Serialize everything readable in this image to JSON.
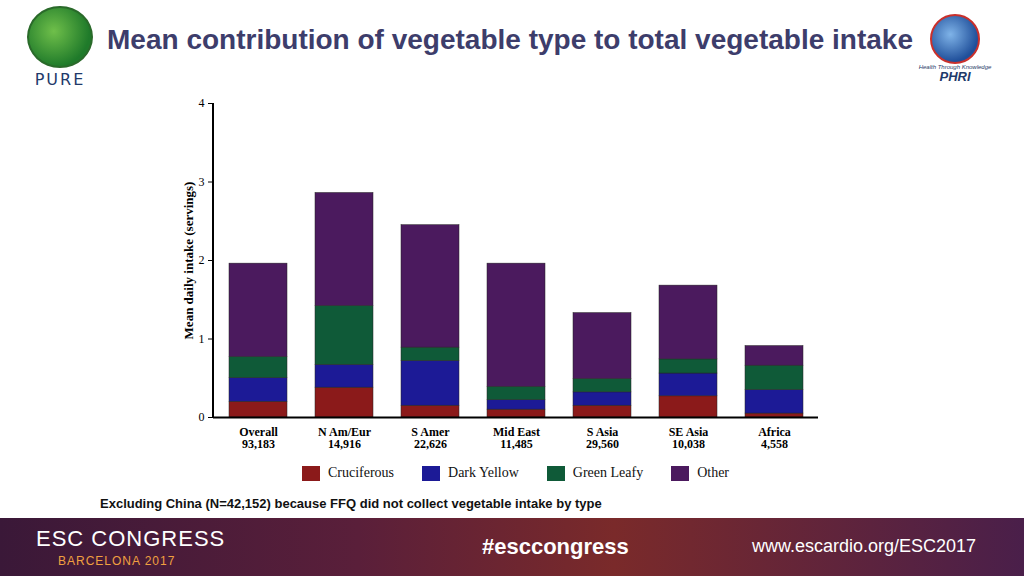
{
  "chart_data": {
    "type": "bar",
    "title": "Mean contribution of vegetable type to total vegetable intake",
    "y_label": "Mean daily intake (servings)",
    "categories": [
      "Overall\n93,183",
      "N Am/Eur\n14,916",
      "S Amer\n22,626",
      "Mid East\n11,485",
      "S Asia\n29,560",
      "SE Asia\n10,038",
      "Africa\n4,558"
    ],
    "series": [
      {
        "name": "Cruciferous",
        "color": "#8b1a1a",
        "values": [
          0.2,
          0.38,
          0.15,
          0.1,
          0.15,
          0.27,
          0.05
        ]
      },
      {
        "name": "Dark Yellow",
        "color": "#1c1a96",
        "values": [
          0.3,
          0.29,
          0.57,
          0.12,
          0.17,
          0.29,
          0.3
        ]
      },
      {
        "name": "Green Leafy",
        "color": "#0f5a38",
        "values": [
          0.27,
          0.75,
          0.17,
          0.17,
          0.17,
          0.18,
          0.31
        ]
      },
      {
        "name": "Other",
        "color": "#4b1a5e",
        "values": [
          1.19,
          1.44,
          1.56,
          1.57,
          0.84,
          0.94,
          0.25
        ]
      }
    ],
    "stacked": true,
    "ylim": [
      0,
      4
    ],
    "yticks": [
      0,
      1,
      2,
      3,
      4
    ],
    "grid": false,
    "legend": "bottom",
    "footnote": "Excluding China (N=42,152) because FFQ did not collect vegetable intake by type"
  },
  "page": {
    "logo_left": "PURE",
    "logo_right": "PHRI",
    "logo_right_tagline": "Health Through Knowledge",
    "footer": [
      "ESC CONGRESS",
      "BARCELONA 2017",
      "#esccongress",
      "www.escardio.org/ESC2017"
    ]
  }
}
